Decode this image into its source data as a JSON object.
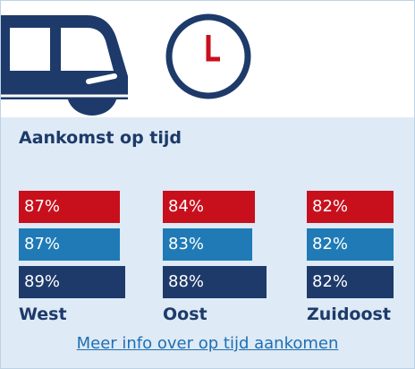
{
  "title": "Aankomst op tijd",
  "link": "Meer info over op tijd aankomen",
  "colors": {
    "series1": "#c8101d",
    "series2": "#1f7ab6",
    "series3": "#1d3a6a",
    "link": "#1f6fb3",
    "panel": "#deeaf5"
  },
  "icons": [
    "bus-icon",
    "clock-icon"
  ],
  "chart_data": {
    "type": "bar",
    "orientation": "horizontal",
    "title": "Aankomst op tijd",
    "categories": [
      "West",
      "Oost",
      "Zuidoost"
    ],
    "series": [
      {
        "values": [
          87,
          84,
          82
        ],
        "labels": [
          "87%",
          "84%",
          "82%"
        ]
      },
      {
        "values": [
          87,
          83,
          82
        ],
        "labels": [
          "87%",
          "83%",
          "82%"
        ]
      },
      {
        "values": [
          89,
          88,
          82
        ],
        "labels": [
          "89%",
          "88%",
          "82%"
        ]
      }
    ]
  }
}
